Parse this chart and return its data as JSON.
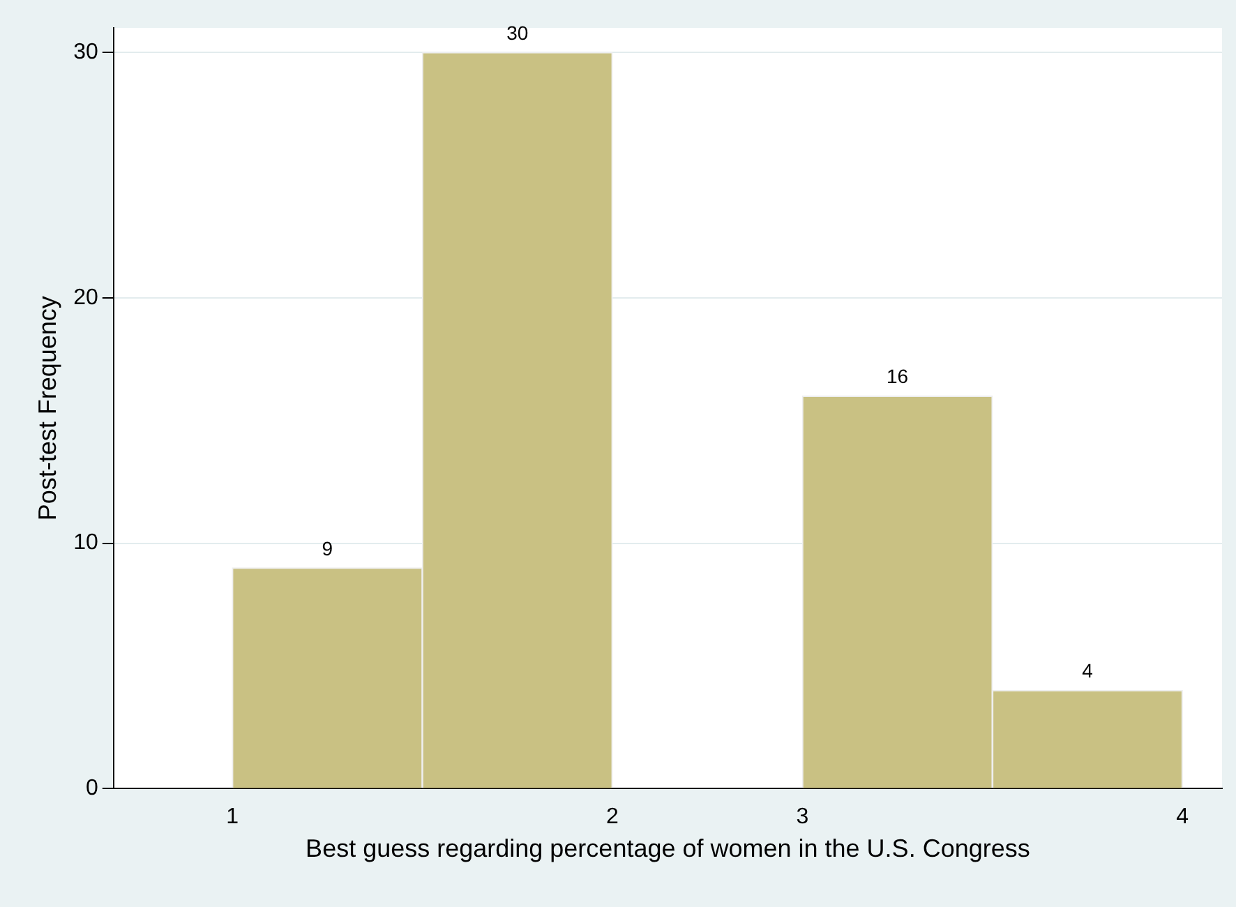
{
  "chart_data": {
    "type": "histogram",
    "xlabel": "Best guess regarding percentage of women in the U.S. Congress",
    "ylabel": "Post-test Frequency",
    "bins": [
      1,
      1.6,
      2.2,
      2.8,
      3.4,
      4
    ],
    "values": [
      9,
      30,
      0,
      16,
      4
    ],
    "value_labels": [
      "9",
      "30",
      null,
      "16",
      "4"
    ],
    "color": "#c9c183",
    "xlim": [
      0.625,
      4.125
    ],
    "xticks": [
      1,
      {
        "value": 2.2,
        "label": "2"
      },
      {
        "value": 2.8,
        "label": "3"
      },
      4
    ],
    "ylim": [
      0,
      31
    ],
    "yticks": [
      0,
      10,
      20,
      30
    ],
    "grid": "y",
    "legend": false
  }
}
